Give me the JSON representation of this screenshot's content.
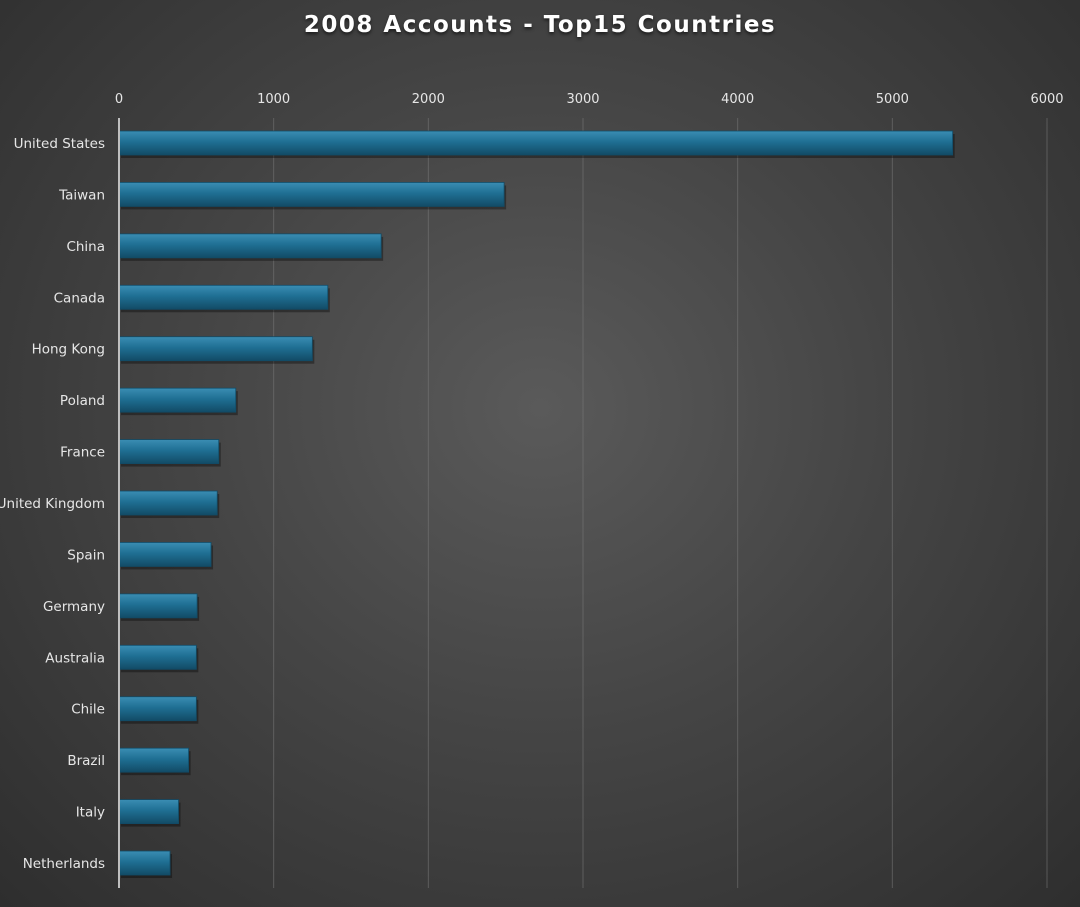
{
  "chart_data": {
    "type": "bar",
    "orientation": "horizontal",
    "title": "2008 Accounts - Top15 Countries",
    "categories": [
      "United States",
      "Taiwan",
      "China",
      "Canada",
      "Hong Kong",
      "Poland",
      "France",
      "United Kingdom",
      "Spain",
      "Germany",
      "Australia",
      "Chile",
      "Brazil",
      "Italy",
      "Netherlands"
    ],
    "values": [
      5390,
      2490,
      1695,
      1350,
      1250,
      755,
      645,
      635,
      595,
      505,
      500,
      500,
      450,
      385,
      330
    ],
    "xlim": [
      0,
      6000
    ],
    "xticks": [
      "0",
      "1000",
      "2000",
      "3000",
      "4000",
      "5000",
      "6000"
    ],
    "xaxis_position": "top",
    "grid": true,
    "legend": "none",
    "colors": {
      "bar": "#1f6f93",
      "bar_highlight": "#3a8db3",
      "bar_shadow": "#124b66",
      "grid": "#7a7a7a",
      "axis": "#bfbfbf",
      "text": "#e6e6e6",
      "title": "#ffffff"
    }
  }
}
